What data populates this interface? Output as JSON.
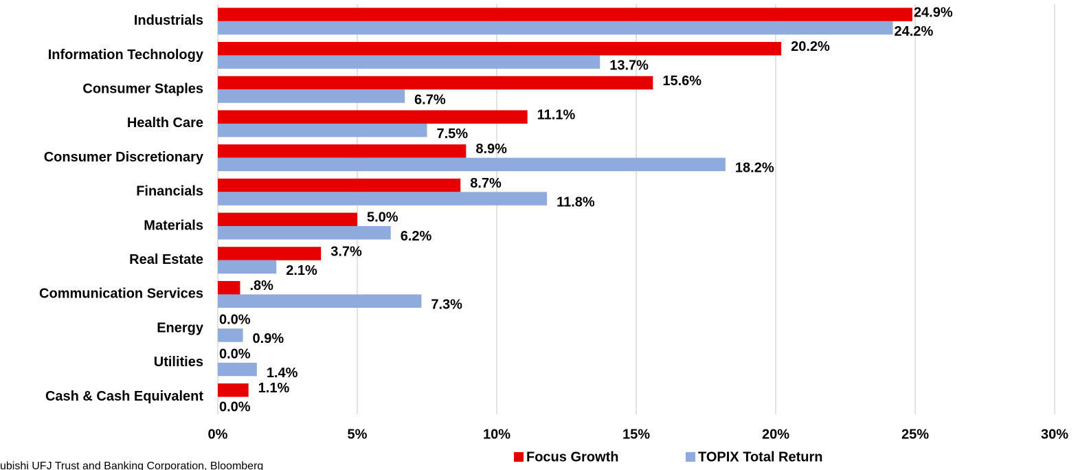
{
  "chart_data": {
    "type": "bar",
    "orientation": "horizontal",
    "categories": [
      "Industrials",
      "Information Technology",
      "Consumer Staples",
      "Health Care",
      "Consumer Discretionary",
      "Financials",
      "Materials",
      "Real Estate",
      "Communication Services",
      "Energy",
      "Utilities",
      "Cash & Cash Equivalent"
    ],
    "series": [
      {
        "name": "Focus Growth",
        "color": "#e60000",
        "values": [
          24.9,
          20.2,
          15.6,
          11.1,
          8.9,
          8.7,
          5.0,
          3.7,
          0.8,
          0.0,
          0.0,
          1.1
        ],
        "value_labels": [
          "24.9%",
          "20.2%",
          "15.6%",
          "11.1%",
          "8.9%",
          "8.7%",
          "5.0%",
          "3.7%",
          ".8%",
          "0.0%",
          "0.0%",
          "1.1%"
        ]
      },
      {
        "name": "TOPIX Total Return",
        "color": "#8faadc",
        "values": [
          24.2,
          13.7,
          6.7,
          7.5,
          18.2,
          11.8,
          6.2,
          2.1,
          7.3,
          0.9,
          1.4,
          0.0
        ],
        "value_labels": [
          "24.2%",
          "13.7%",
          "6.7%",
          "7.5%",
          "18.2%",
          "11.8%",
          "6.2%",
          "2.1%",
          "7.3%",
          "0.9%",
          "1.4%",
          "0.0%"
        ]
      }
    ],
    "xlim": [
      0,
      30
    ],
    "xticks": [
      {
        "value": 0,
        "label": "0%"
      },
      {
        "value": 5,
        "label": "5%"
      },
      {
        "value": 10,
        "label": "10%"
      },
      {
        "value": 15,
        "label": "15%"
      },
      {
        "value": 20,
        "label": "20%"
      },
      {
        "value": 25,
        "label": "25%"
      },
      {
        "value": 30,
        "label": "30%"
      }
    ],
    "grid": true,
    "legend": "bottom",
    "source": "ubishi UFJ Trust and Banking Corporation, Bloomberg"
  }
}
